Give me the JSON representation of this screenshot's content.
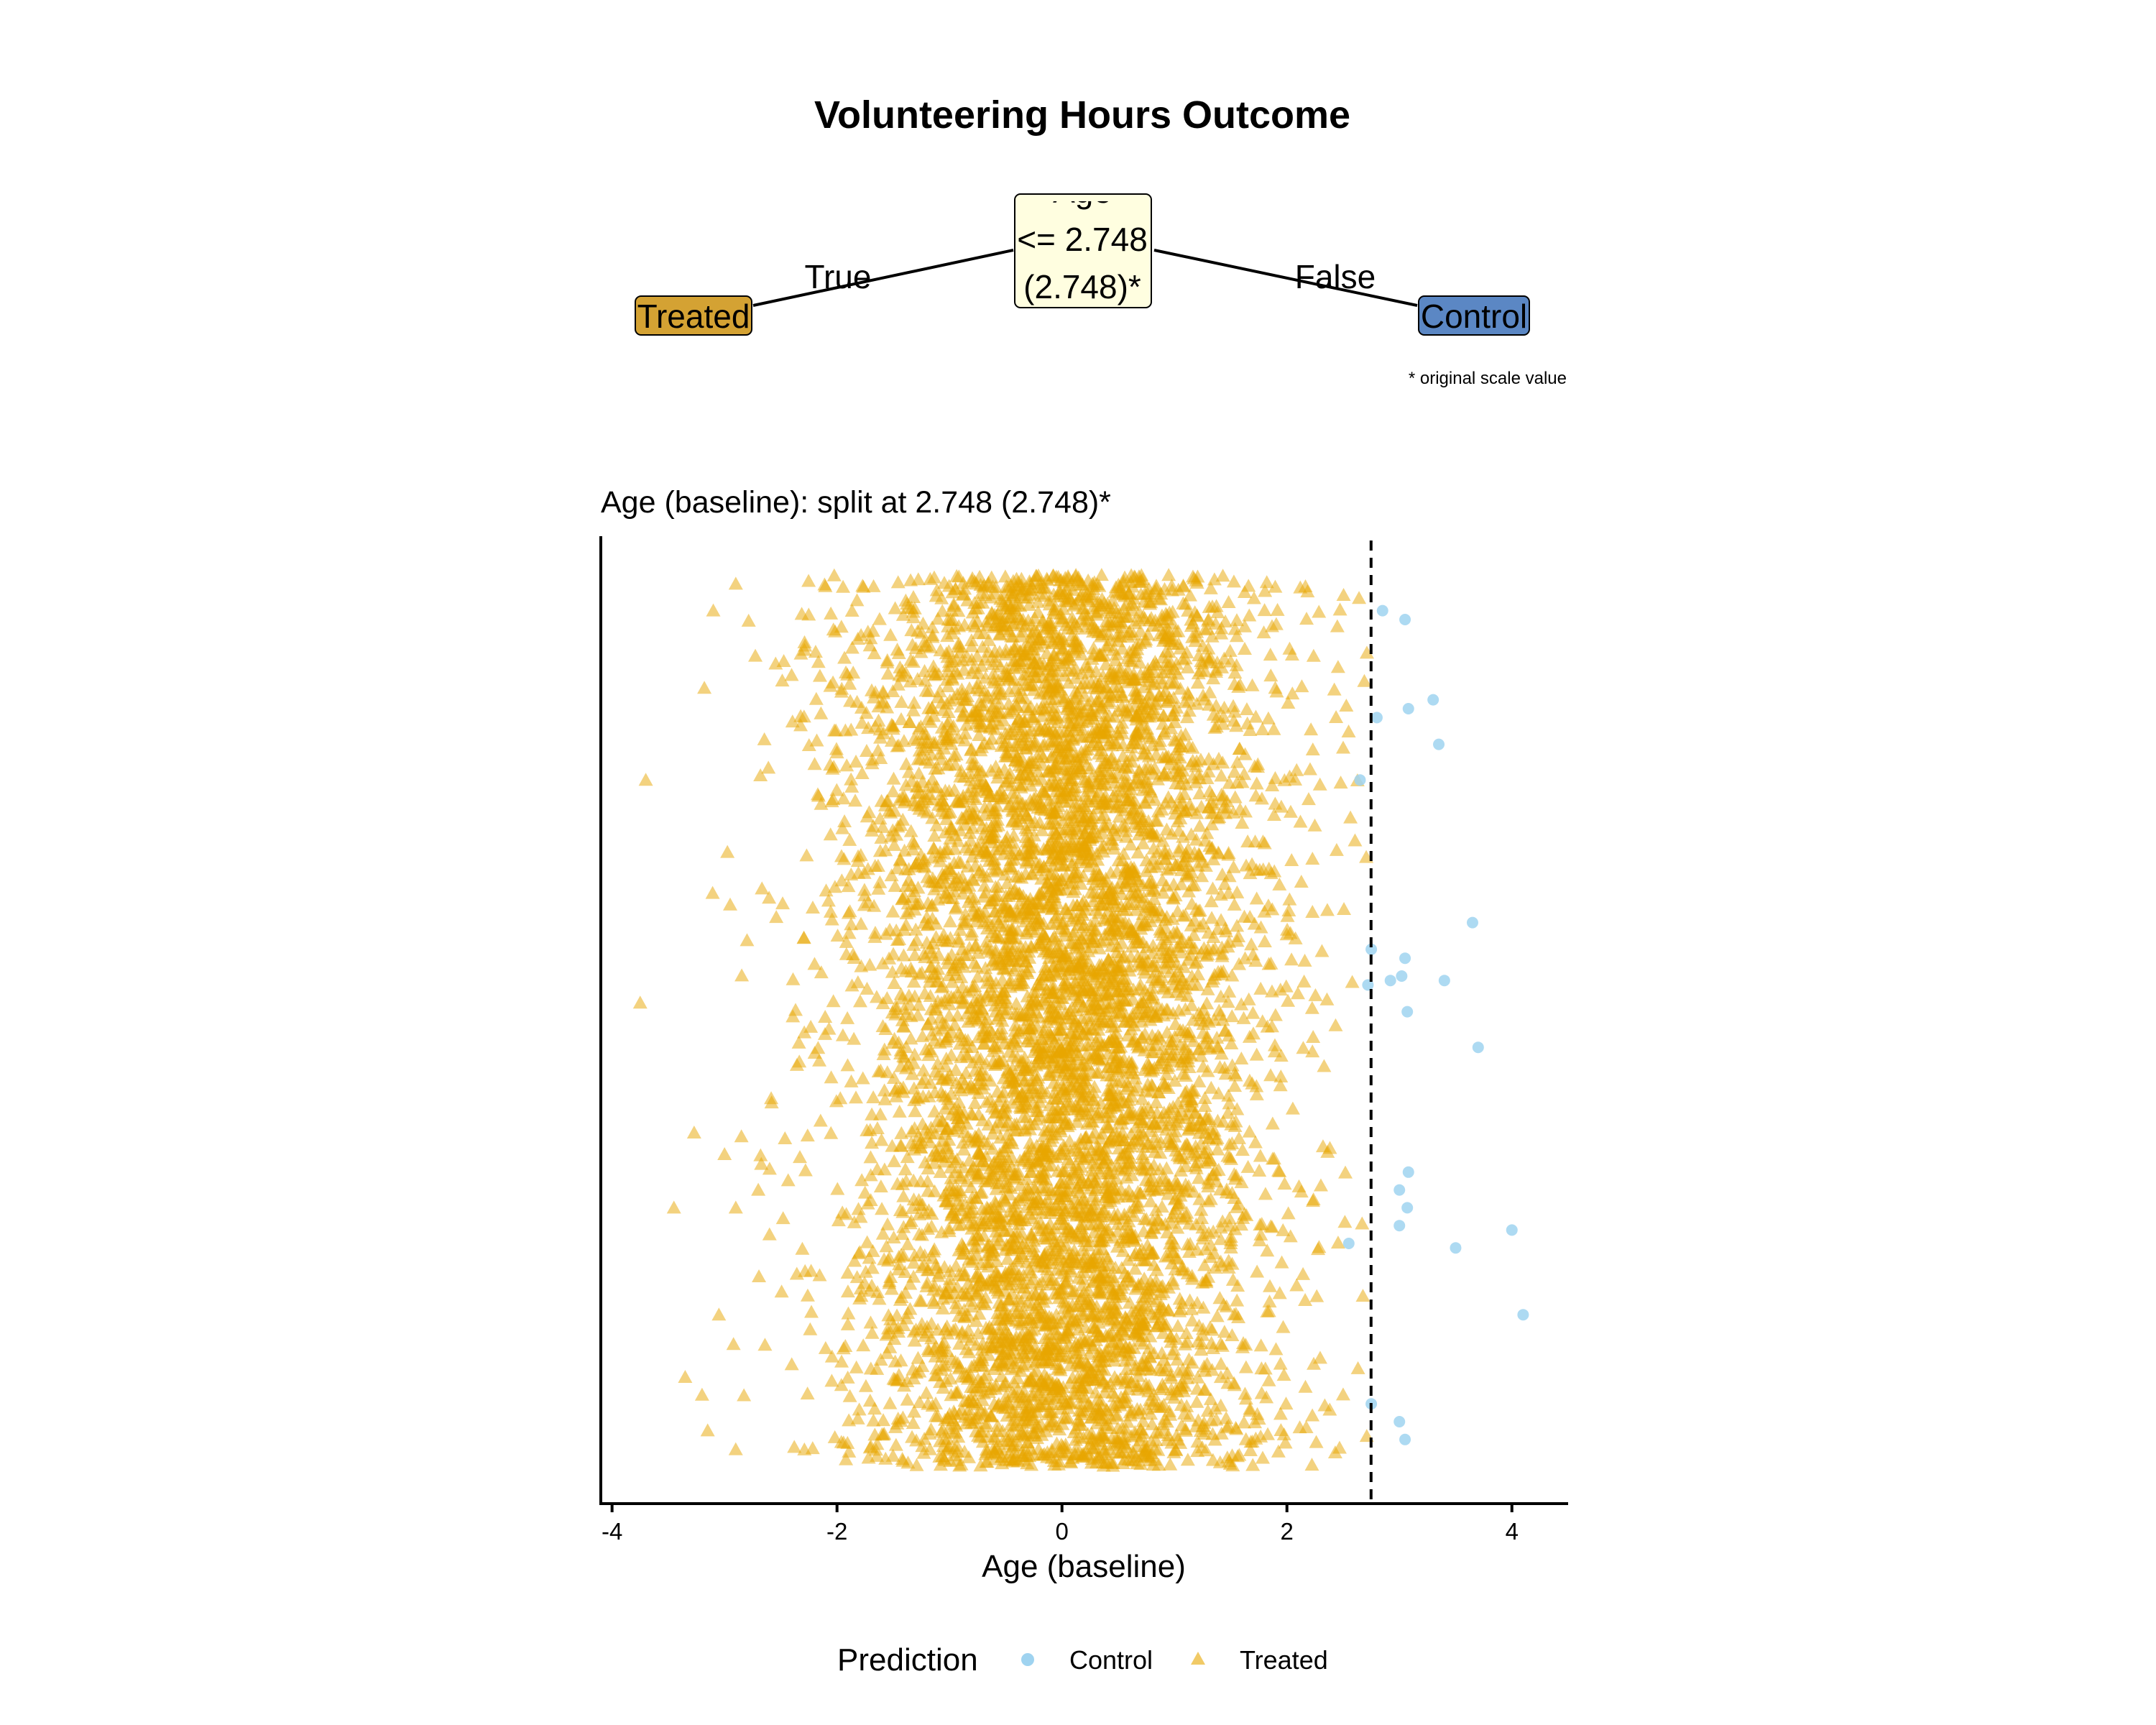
{
  "title": "Volunteering Hours Outcome",
  "tree": {
    "root": {
      "lines": [
        "Age",
        "<= 2.748",
        "(2.748)*"
      ]
    },
    "left_edge_label": "True",
    "right_edge_label": "False",
    "left_leaf": {
      "label": "Treated",
      "color": "#D4A233"
    },
    "right_leaf": {
      "label": "Control",
      "color": "#5B87C4"
    },
    "root_fill": "#FFFEE0",
    "footnote": "* original scale value"
  },
  "chart_data": {
    "type": "scatter",
    "title": "Age (baseline): split at 2.748 (2.748)*",
    "xlabel": "Age (baseline)",
    "ylabel": "",
    "xlim": [
      -4.1,
      4.5
    ],
    "xticks": [
      -4,
      -2,
      0,
      2,
      4
    ],
    "split_value": 2.748,
    "legend_title": "Prediction",
    "legend_position": "bottom",
    "series": [
      {
        "name": "Control",
        "marker": "circle",
        "color": "#9FD3F0",
        "points": [
          [
            2.85,
            0.96
          ],
          [
            3.05,
            0.95
          ],
          [
            3.3,
            0.86
          ],
          [
            2.8,
            0.84
          ],
          [
            3.08,
            0.85
          ],
          [
            3.35,
            0.81
          ],
          [
            2.65,
            0.77
          ],
          [
            3.65,
            0.61
          ],
          [
            2.75,
            0.58
          ],
          [
            3.05,
            0.57
          ],
          [
            2.72,
            0.54
          ],
          [
            2.92,
            0.545
          ],
          [
            3.02,
            0.55
          ],
          [
            3.4,
            0.545
          ],
          [
            3.07,
            0.51
          ],
          [
            3.7,
            0.47
          ],
          [
            3.08,
            0.33
          ],
          [
            3.0,
            0.31
          ],
          [
            3.07,
            0.29
          ],
          [
            3.0,
            0.27
          ],
          [
            4.0,
            0.265
          ],
          [
            2.55,
            0.25
          ],
          [
            3.5,
            0.245
          ],
          [
            4.1,
            0.17
          ],
          [
            2.75,
            0.07
          ],
          [
            3.0,
            0.05
          ],
          [
            3.05,
            0.03
          ]
        ]
      },
      {
        "name": "Treated",
        "marker": "triangle",
        "color": "#E8A600",
        "n_points": 7000,
        "x_center": 0,
        "x_sd": 0.93,
        "x_max": 2.745,
        "outliers": [
          [
            -3.7,
            0.77
          ],
          [
            -3.75,
            0.52
          ],
          [
            -3.45,
            0.29
          ],
          [
            -3.35,
            0.1
          ],
          [
            -3.2,
            0.08
          ],
          [
            -3.15,
            0.04
          ],
          [
            -3.1,
            0.96
          ],
          [
            -3.05,
            0.17
          ],
          [
            -2.95,
            0.63
          ],
          [
            -3.0,
            0.35
          ],
          [
            -2.9,
            0.29
          ],
          [
            -2.8,
            0.59
          ],
          [
            -2.7,
            0.31
          ],
          [
            -2.85,
            0.37
          ],
          [
            -2.6,
            0.26
          ],
          [
            -2.9,
            0.99
          ]
        ]
      }
    ]
  }
}
